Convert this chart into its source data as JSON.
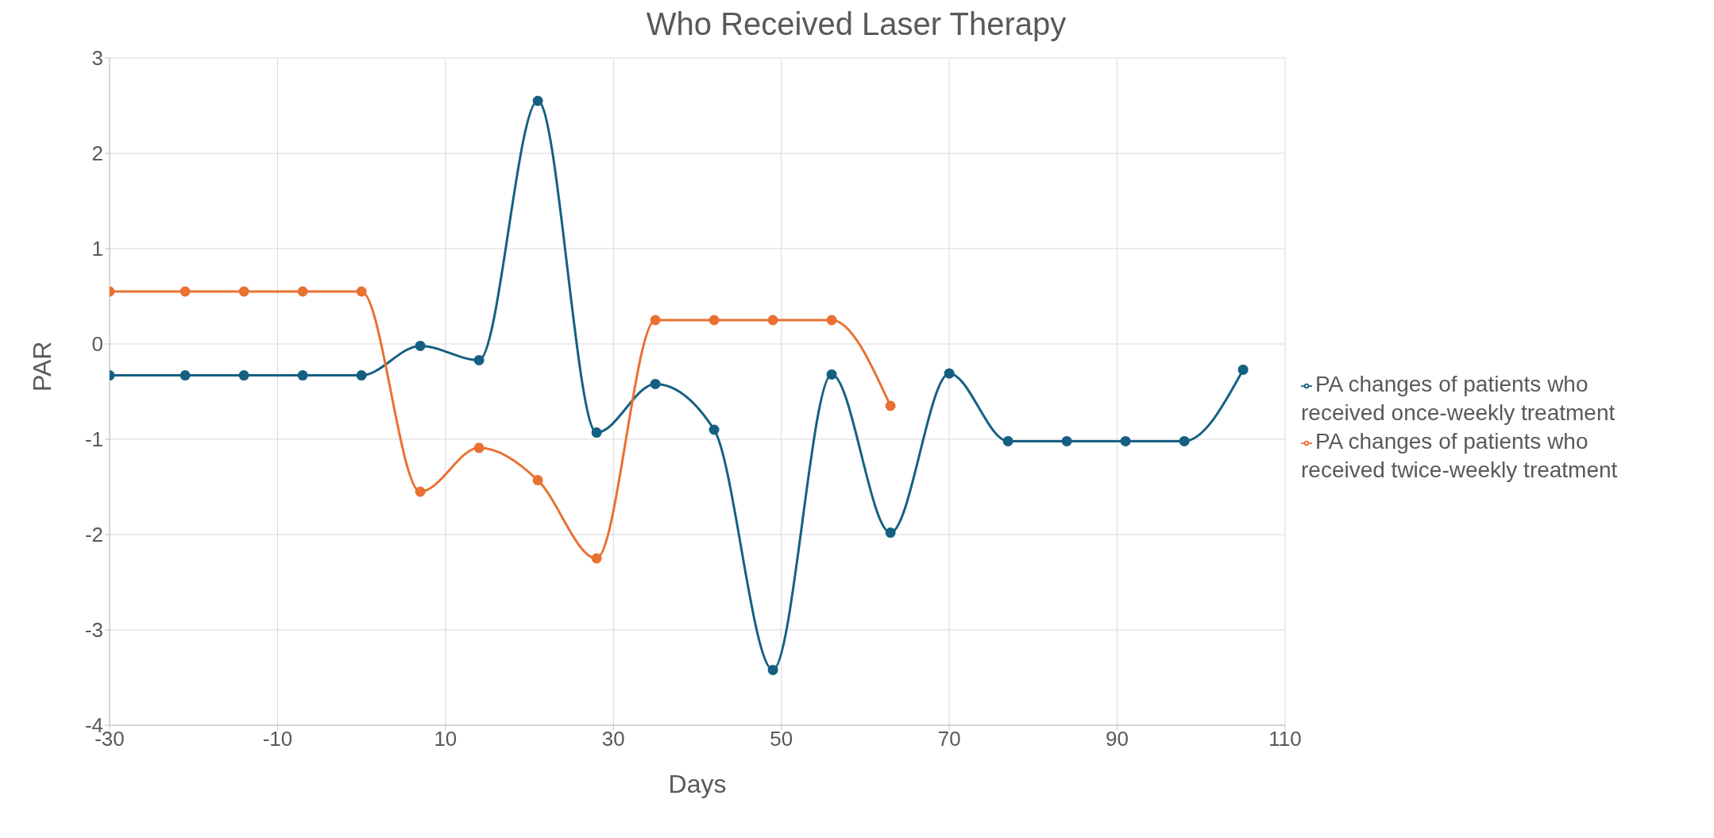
{
  "chart_data": {
    "type": "line",
    "title": "Who Received Laser Therapy",
    "xlabel": "Days",
    "ylabel": "PAR",
    "xlim": [
      -30,
      110
    ],
    "xticks": [
      -30,
      -10,
      10,
      30,
      50,
      70,
      90,
      110
    ],
    "ylim": [
      -4,
      3
    ],
    "yticks": [
      -4,
      -3,
      -2,
      -1,
      0,
      1,
      2,
      3
    ],
    "grid": true,
    "legend": "right",
    "marker": "circle",
    "line_style": "solid",
    "series": [
      {
        "name": "PA changes of patients who received once-weekly treatment",
        "color": "#156082",
        "x": [
          -30,
          -21,
          -14,
          -7,
          0,
          7,
          14,
          21,
          28,
          35,
          42,
          49,
          56,
          63,
          70,
          77,
          84,
          91,
          98,
          105
        ],
        "values": [
          -0.33,
          -0.33,
          -0.33,
          -0.33,
          -0.33,
          -0.02,
          -0.17,
          2.55,
          -0.93,
          -0.42,
          -0.9,
          -3.42,
          -0.32,
          -1.98,
          -0.31,
          -1.02,
          -1.02,
          -1.02,
          -1.02,
          -0.27
        ]
      },
      {
        "name": "PA changes of patients who received twice-weekly treatment",
        "color": "#e97132",
        "x": [
          -30,
          -21,
          -14,
          -7,
          0,
          7,
          14,
          21,
          28,
          35,
          42,
          49,
          56,
          63
        ],
        "values": [
          0.55,
          0.55,
          0.55,
          0.55,
          0.55,
          -1.55,
          -1.09,
          -1.43,
          -2.25,
          0.25,
          0.25,
          0.25,
          0.25,
          -0.65
        ]
      }
    ]
  }
}
